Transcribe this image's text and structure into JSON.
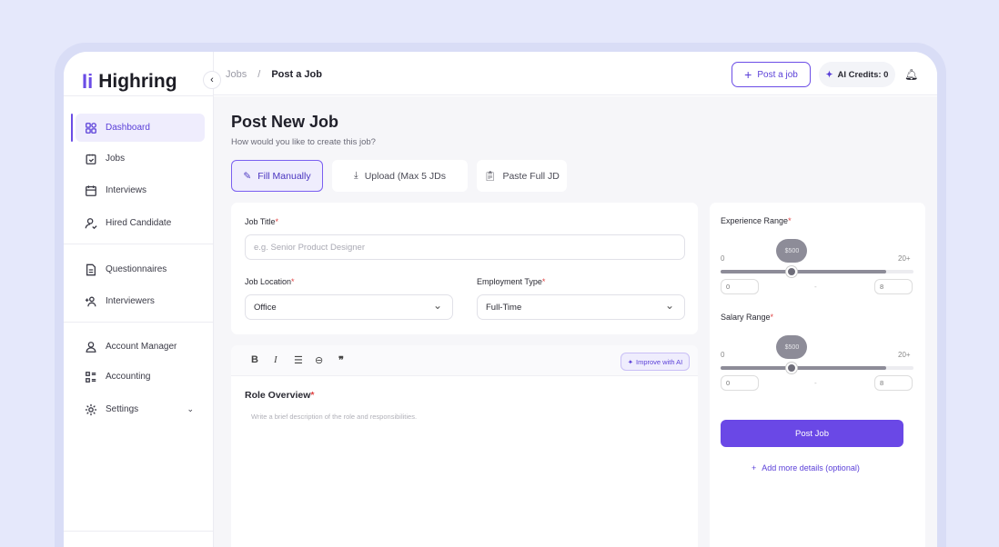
{
  "brand": {
    "name": "Highring",
    "accent": "#6b4de6"
  },
  "sidebar": {
    "items": [
      {
        "label": "Dashboard",
        "icon": "grid-icon",
        "active": true
      },
      {
        "label": "Jobs",
        "icon": "clipboard-check-icon"
      },
      {
        "label": "Interviews",
        "icon": "calendar-icon"
      },
      {
        "label": "Hired Candidate",
        "icon": "user-check-icon"
      },
      {
        "label": "Questionnaires",
        "icon": "document-icon"
      },
      {
        "label": "Interviewers",
        "icon": "users-plus-icon"
      },
      {
        "label": "Account Manager",
        "icon": "user-icon"
      },
      {
        "label": "Accounting",
        "icon": "list-icon"
      },
      {
        "label": "Settings",
        "icon": "gear-icon"
      }
    ]
  },
  "header": {
    "breadcrumb": [
      "Jobs",
      "/",
      "Post a Job"
    ],
    "post_job": "Post a job",
    "credits": "AI Credits: 0"
  },
  "page": {
    "title": "Post New Job",
    "subtitle": "How would you like to create this job?",
    "modes": [
      "Fill Manually",
      "Upload (Max 5 JDs",
      "Paste Full JD"
    ]
  },
  "form": {
    "job_title_label": "Job Title",
    "job_title_placeholder": "e.g. Senior Product Designer",
    "location_label": "Job Location",
    "location_value": "Office",
    "employment_label": "Employment Type",
    "employment_value": "Full-Time",
    "required": "*"
  },
  "editor": {
    "improve": "Improve with AI",
    "heading": "Role Overview",
    "placeholder": "Write a brief description of the role and responsibilities."
  },
  "ranges": [
    {
      "label": "Experience Range",
      "min_tick": "0",
      "max_tick": "20+",
      "bubble": "$500",
      "min": "0",
      "max": "8",
      "dash": "-",
      "thumb_pct": 37,
      "fill_pct": 86
    },
    {
      "label": "Salary Range",
      "min_tick": "0",
      "max_tick": "20+",
      "bubble": "$500",
      "min": "0",
      "max": "8",
      "dash": "-",
      "thumb_pct": 37,
      "fill_pct": 86
    }
  ],
  "actions": {
    "submit": "Post Job",
    "more": "Add more details (optional)"
  }
}
